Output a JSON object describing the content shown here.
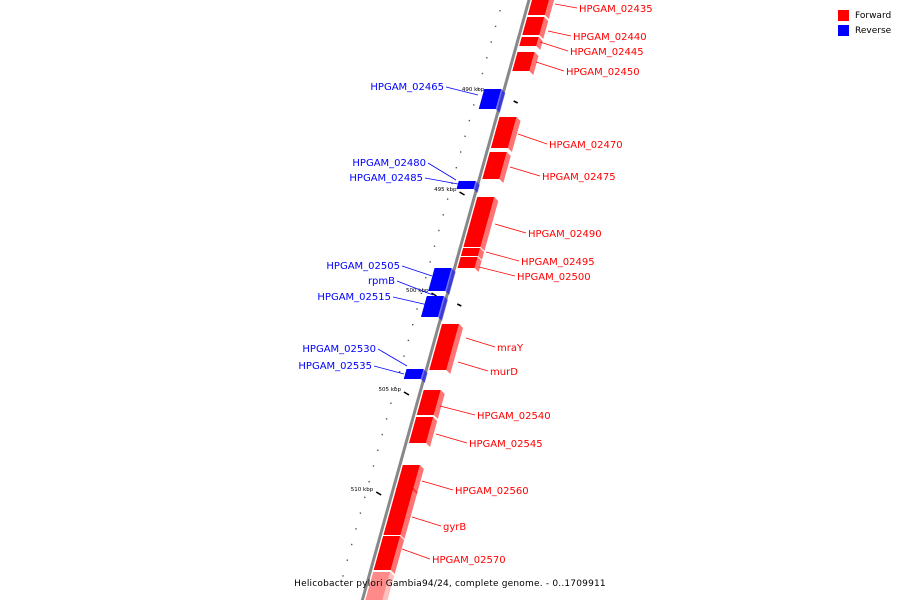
{
  "colors": {
    "forward": "#ff0000",
    "reverse": "#0000ff",
    "backbone": "#888888"
  },
  "legend": [
    {
      "label": "Forward",
      "color": "#ff0000"
    },
    {
      "label": "Reverse",
      "color": "#0000ff"
    }
  ],
  "footer": "Helicobacter pylori Gambia94/24, complete genome. - 0..1709911",
  "ticks": [
    "490 kbp",
    "495 kbp",
    "500 kbp",
    "505 kbp",
    "510 kbp"
  ],
  "genes": {
    "forward": [
      "HPGAM_02435",
      "HPGAM_02440",
      "HPGAM_02445",
      "HPGAM_02450",
      "HPGAM_02470",
      "HPGAM_02475",
      "HPGAM_02490",
      "HPGAM_02495",
      "HPGAM_02500",
      "mraY",
      "murD",
      "HPGAM_02540",
      "HPGAM_02545",
      "HPGAM_02560",
      "gyrB",
      "HPGAM_02570"
    ],
    "reverse": [
      "HPGAM_02465",
      "HPGAM_02480",
      "HPGAM_02485",
      "HPGAM_02505",
      "rpmB",
      "HPGAM_02515",
      "HPGAM_02530",
      "HPGAM_02535"
    ]
  }
}
